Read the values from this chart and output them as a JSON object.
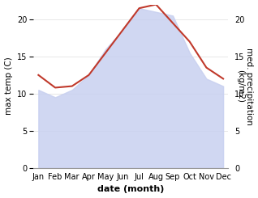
{
  "months": [
    "Jan",
    "Feb",
    "Mar",
    "Apr",
    "May",
    "Jun",
    "Jul",
    "Aug",
    "Sep",
    "Oct",
    "Nov",
    "Dec"
  ],
  "max_temp": [
    10.5,
    9.5,
    10.5,
    12.5,
    16.0,
    18.5,
    21.5,
    21.0,
    20.5,
    15.5,
    12.0,
    11.0
  ],
  "med_precip": [
    12.5,
    10.8,
    11.0,
    12.5,
    15.5,
    18.5,
    21.5,
    22.0,
    19.5,
    17.0,
    13.5,
    12.0
  ],
  "temp_ylim": [
    0,
    22
  ],
  "precip_ylim": [
    0,
    22
  ],
  "temp_yticks": [
    0,
    5,
    10,
    15,
    20
  ],
  "precip_yticks": [
    0,
    5,
    10,
    15,
    20
  ],
  "fill_color": "#c8d0f0",
  "fill_alpha": 0.85,
  "line_color": "#c0392b",
  "line_width": 1.5,
  "xlabel": "date (month)",
  "ylabel_left": "max temp (C)",
  "ylabel_right": "med. precipitation\n(kg/m2)",
  "bg_color": "#ffffff",
  "xlabel_fontsize": 8,
  "ylabel_fontsize": 7.5,
  "tick_fontsize": 7
}
